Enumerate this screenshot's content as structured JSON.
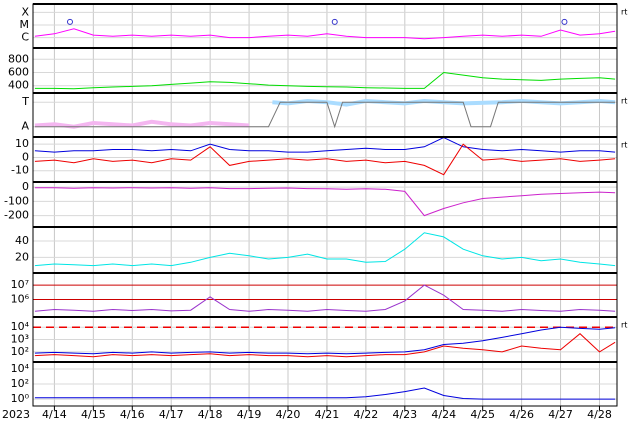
{
  "time_axis": {
    "xlim": [
      13.45,
      28.45
    ],
    "year": "2023",
    "x": [
      13.5,
      14,
      14.5,
      15,
      15.5,
      16,
      16.5,
      17,
      17.5,
      18,
      18.5,
      19,
      19.5,
      20,
      20.5,
      21,
      21.5,
      22,
      22.5,
      23,
      23.5,
      24,
      24.5,
      25,
      25.5,
      26,
      26.5,
      27,
      27.5,
      28,
      28.4
    ],
    "xticks": [
      {
        "value": 14,
        "label": "4/14"
      },
      {
        "value": 15,
        "label": "4/15"
      },
      {
        "value": 16,
        "label": "4/16"
      },
      {
        "value": 17,
        "label": "4/17"
      },
      {
        "value": 18,
        "label": "4/18"
      },
      {
        "value": 19,
        "label": "4/19"
      },
      {
        "value": 20,
        "label": "4/20"
      },
      {
        "value": 21,
        "label": "4/21"
      },
      {
        "value": 22,
        "label": "4/22"
      },
      {
        "value": 23,
        "label": "4/23"
      },
      {
        "value": 24,
        "label": "4/24"
      },
      {
        "value": 25,
        "label": "4/25"
      },
      {
        "value": 26,
        "label": "4/26"
      },
      {
        "value": 27,
        "label": "4/27"
      },
      {
        "value": 28,
        "label": "4/28"
      }
    ]
  },
  "chart_data": [
    {
      "type": "line",
      "side_label": "rt",
      "ylim": [
        -6.83,
        -3.33
      ],
      "yticks": [
        {
          "value": -4,
          "label": "X"
        },
        {
          "value": -5,
          "label": "M"
        },
        {
          "value": -6,
          "label": "C"
        }
      ],
      "series": [
        {
          "color": "#ff00ff",
          "values": [
            -5.9,
            -5.7,
            -5.3,
            -5.8,
            -5.9,
            -5.8,
            -5.9,
            -5.8,
            -5.9,
            -5.8,
            -6.0,
            -6.0,
            -5.9,
            -5.8,
            -5.9,
            -5.7,
            -5.9,
            -6.0,
            -6.0,
            -6.0,
            -6.1,
            -6.0,
            -5.9,
            -5.8,
            -5.9,
            -5.8,
            -5.9,
            -5.4,
            -5.8,
            -5.7,
            -5.5
          ]
        },
        {
          "color": "#3333cc",
          "style": "circle",
          "x": [
            14.4,
            21.2,
            27.1
          ],
          "values": [
            -4.75,
            -4.75,
            -4.75
          ]
        }
      ]
    },
    {
      "type": "line",
      "ylim": [
        290,
        970
      ],
      "yticks": [
        400,
        600,
        800
      ],
      "series": [
        {
          "color": "#00dd00",
          "values": [
            360,
            360,
            355,
            370,
            380,
            390,
            400,
            420,
            440,
            460,
            450,
            430,
            410,
            400,
            390,
            385,
            380,
            370,
            365,
            360,
            360,
            600,
            560,
            520,
            500,
            490,
            480,
            500,
            510,
            520,
            500
          ]
        }
      ]
    },
    {
      "type": "line",
      "side_label": "rt",
      "ylim": [
        -0.42,
        1.375
      ],
      "yticks": [
        {
          "value": 1,
          "label": "T"
        },
        {
          "value": 0,
          "label": "A"
        }
      ],
      "series": [
        {
          "color": "#f4b6f0",
          "width": 4,
          "x": [
            13.5,
            14,
            14.5,
            15,
            15.5,
            16,
            16.5,
            17,
            17.5,
            18,
            18.5,
            19
          ],
          "values": [
            0.05,
            0.1,
            0.0,
            0.15,
            0.1,
            0.05,
            0.2,
            0.1,
            0.05,
            0.15,
            0.1,
            0.05
          ]
        },
        {
          "color": "#aadcff",
          "width": 4,
          "x": [
            19.6,
            20,
            20.5,
            21,
            21.5,
            22,
            22.5,
            23,
            23.5,
            24,
            24.5,
            25.5,
            26,
            26.5,
            27,
            27.5,
            28,
            28.4
          ],
          "values": [
            1.0,
            0.95,
            1.05,
            1.0,
            0.9,
            1.05,
            1.0,
            0.95,
            1.05,
            1.0,
            0.95,
            1.0,
            1.05,
            1.0,
            0.95,
            1.0,
            1.05,
            1.0
          ]
        },
        {
          "color": "#777777",
          "x": [
            13.5,
            19.5,
            19.8,
            21.0,
            21.2,
            21.4,
            24.5,
            24.7,
            25.2,
            25.4,
            28.4
          ],
          "values": [
            0,
            0,
            1,
            1,
            0,
            1,
            1,
            0,
            0,
            1,
            1
          ]
        }
      ]
    },
    {
      "type": "line",
      "side_label": "rt",
      "ylim": [
        -18.5,
        15.4
      ],
      "yticks": [
        10,
        0,
        -10
      ],
      "series": [
        {
          "color": "#0000dd",
          "values": [
            5,
            4,
            5,
            5,
            6,
            6,
            5,
            6,
            5,
            10,
            6,
            5,
            5,
            4,
            4,
            5,
            6,
            7,
            6,
            6,
            8,
            15,
            8,
            6,
            5,
            6,
            5,
            4,
            5,
            5,
            4
          ]
        },
        {
          "color": "#ee0000",
          "values": [
            -3,
            -2,
            -4,
            -1,
            -3,
            -2,
            -4,
            -1,
            -2,
            8,
            -6,
            -3,
            -2,
            -1,
            -2,
            -1,
            -3,
            -2,
            -4,
            -3,
            -6,
            -13,
            10,
            -2,
            -1,
            -3,
            -2,
            -1,
            -3,
            -2,
            -1
          ]
        }
      ]
    },
    {
      "type": "line",
      "ylim": [
        -280,
        36
      ],
      "yticks": [
        0,
        -100,
        -200
      ],
      "series": [
        {
          "color": "#cc22cc",
          "values": [
            -5,
            -5,
            -8,
            -5,
            -6,
            -4,
            -6,
            -5,
            -8,
            -5,
            -10,
            -10,
            -8,
            -6,
            -10,
            -12,
            -15,
            -12,
            -15,
            -30,
            -200,
            -150,
            -110,
            -80,
            -70,
            -60,
            -50,
            -45,
            -40,
            -35,
            -40
          ]
        }
      ]
    },
    {
      "type": "line",
      "ylim": [
        1,
        57
      ],
      "yticks": [
        20,
        40
      ],
      "series": [
        {
          "color": "#00e5e5",
          "values": [
            10,
            12,
            11,
            10,
            12,
            10,
            12,
            10,
            14,
            20,
            25,
            22,
            18,
            20,
            24,
            18,
            18,
            14,
            15,
            30,
            50,
            45,
            30,
            22,
            18,
            20,
            16,
            18,
            14,
            12,
            10
          ]
        }
      ]
    },
    {
      "type": "line",
      "log": true,
      "grid_color": "#cc0000",
      "ylim": [
        60000,
        70000000
      ],
      "yticks": [
        {
          "value": 10000000,
          "label": "10⁷"
        },
        {
          "value": 1000000,
          "label": "10⁶"
        }
      ],
      "series": [
        {
          "color": "#9933cc",
          "values": [
            150000,
            200000,
            180000,
            150000,
            200000,
            170000,
            200000,
            160000,
            180000,
            1500000,
            200000,
            150000,
            200000,
            180000,
            150000,
            200000,
            170000,
            150000,
            200000,
            800000,
            10000000,
            2000000,
            200000,
            180000,
            150000,
            200000,
            170000,
            150000,
            200000,
            180000,
            150000
          ]
        }
      ]
    },
    {
      "type": "line",
      "log": true,
      "side_label": "rt",
      "ylim": [
        15,
        68000
      ],
      "yticks": [
        {
          "value": 10000,
          "label": "10⁴"
        },
        {
          "value": 1000,
          "label": "10³"
        },
        {
          "value": 100,
          "label": "10²"
        }
      ],
      "reference_lines": [
        {
          "value": 10000,
          "color": "#ee0000",
          "dash": true
        }
      ],
      "series": [
        {
          "color": "#0000dd",
          "values": [
            80,
            90,
            80,
            70,
            90,
            80,
            100,
            80,
            90,
            100,
            80,
            90,
            80,
            80,
            70,
            80,
            70,
            80,
            90,
            100,
            150,
            400,
            500,
            800,
            1500,
            3000,
            6000,
            10000,
            8000,
            7000,
            9000
          ]
        },
        {
          "color": "#ee0000",
          "values": [
            50,
            60,
            50,
            40,
            60,
            50,
            60,
            50,
            60,
            70,
            50,
            60,
            50,
            50,
            40,
            50,
            40,
            50,
            60,
            60,
            100,
            300,
            200,
            150,
            100,
            300,
            200,
            150,
            3000,
            100,
            600
          ]
        }
      ]
    },
    {
      "type": "line",
      "log": true,
      "ylim": [
        0.12,
        85000
      ],
      "yticks": [
        {
          "value": 10000,
          "label": "10⁴"
        },
        {
          "value": 100,
          "label": "10²"
        },
        {
          "value": 1,
          "label": "10⁰"
        }
      ],
      "series": [
        {
          "color": "#0000dd",
          "values": [
            1.5,
            1.5,
            1.5,
            1.5,
            1.5,
            1.5,
            1.5,
            1.5,
            1.5,
            1.5,
            1.5,
            1.5,
            1.5,
            1.5,
            1.5,
            1.5,
            1.5,
            2,
            4,
            10,
            30,
            3,
            1.2,
            1,
            1,
            1,
            1,
            1,
            1,
            1,
            1
          ]
        }
      ]
    }
  ]
}
